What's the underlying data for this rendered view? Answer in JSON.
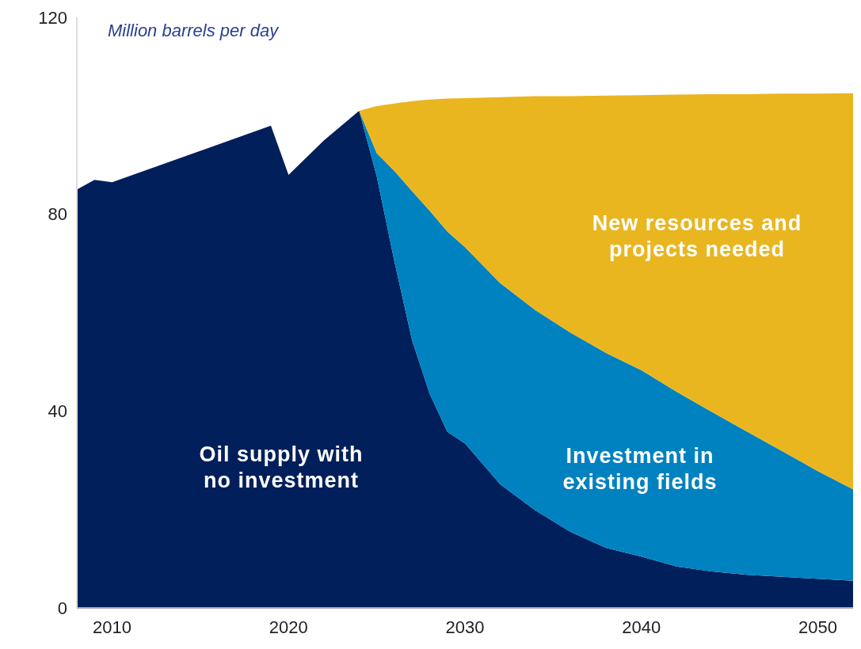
{
  "chart_data": {
    "type": "area",
    "stacked": true,
    "ylabel": "Million barrels per day",
    "x": [
      2008,
      2009,
      2010,
      2019,
      2020,
      2022,
      2024,
      2025,
      2026,
      2027,
      2028,
      2029,
      2030,
      2032,
      2034,
      2036,
      2038,
      2040,
      2042,
      2044,
      2046,
      2048,
      2050,
      2052
    ],
    "series": [
      {
        "name": "Oil supply with no investment",
        "color": "#001f5b",
        "values": [
          85,
          87,
          86.5,
          98,
          88,
          95,
          101,
          87.7,
          70.4,
          54.4,
          43.5,
          35.8,
          33.4,
          25.1,
          19.8,
          15.4,
          12.2,
          10.4,
          8.4,
          7.4,
          6.7,
          6.3,
          5.9,
          5.5
        ]
      },
      {
        "name": "Investment in existing fields",
        "color": "#0082c0",
        "values": [
          null,
          null,
          null,
          null,
          null,
          null,
          0,
          4.7,
          18.4,
          30.3,
          37.2,
          40.7,
          39.9,
          40.9,
          40.7,
          40.5,
          39.6,
          37.9,
          35.5,
          32.4,
          29.1,
          25.5,
          21.9,
          18.6
        ]
      },
      {
        "name": "New resources and projects needed",
        "color": "#e9b620",
        "values": [
          null,
          null,
          null,
          null,
          null,
          null,
          0,
          9.6,
          13.7,
          18.3,
          22.6,
          27,
          30.3,
          37.8,
          43.5,
          48.1,
          52.3,
          55.9,
          60.4,
          64.6,
          68.6,
          72.7,
          76.7,
          80.5
        ]
      }
    ],
    "xlim": [
      2008,
      2052
    ],
    "xticks": [
      2010,
      2020,
      2030,
      2040,
      2050
    ],
    "ylim": [
      0,
      120
    ],
    "yticks": [
      0,
      40,
      80,
      120
    ],
    "grid": false,
    "legend": false
  }
}
